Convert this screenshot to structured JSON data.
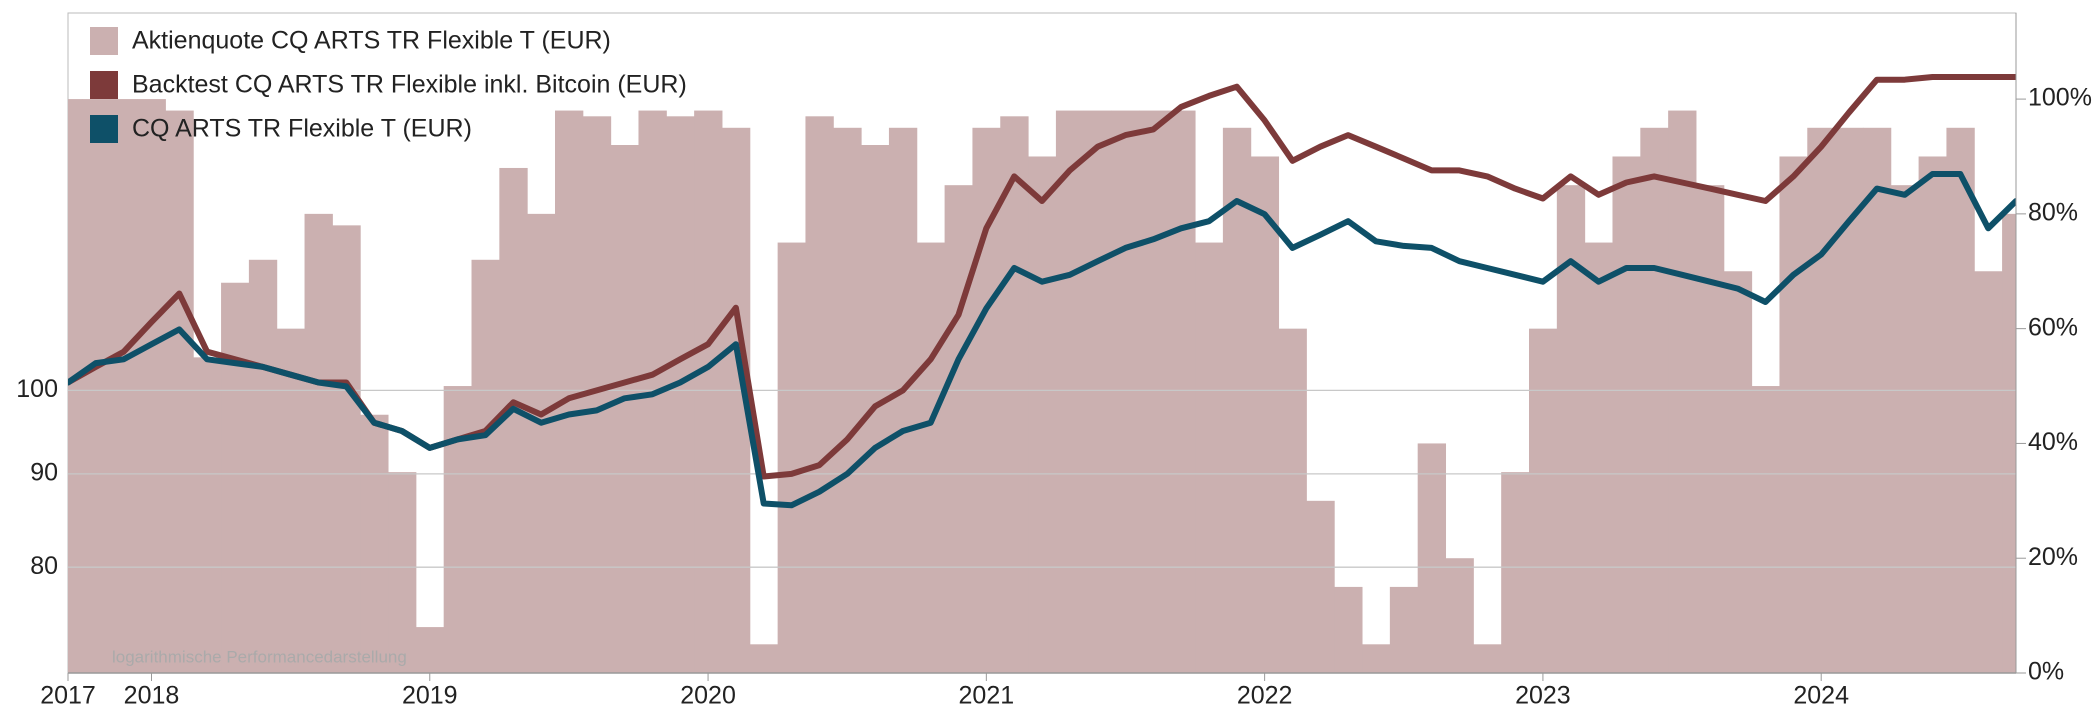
{
  "chart_data": {
    "type": "combo",
    "annotation": "logarithmische Performancedarstellung",
    "x": [
      2017.7,
      2017.8,
      2017.9,
      2018.0,
      2018.1,
      2018.2,
      2018.3,
      2018.4,
      2018.5,
      2018.6,
      2018.7,
      2018.8,
      2018.9,
      2019.0,
      2019.1,
      2019.2,
      2019.3,
      2019.4,
      2019.5,
      2019.6,
      2019.7,
      2019.8,
      2019.9,
      2020.0,
      2020.1,
      2020.2,
      2020.3,
      2020.4,
      2020.5,
      2020.6,
      2020.7,
      2020.8,
      2020.9,
      2021.0,
      2021.1,
      2021.2,
      2021.3,
      2021.4,
      2021.5,
      2021.6,
      2021.7,
      2021.8,
      2021.9,
      2022.0,
      2022.1,
      2022.2,
      2022.3,
      2022.4,
      2022.5,
      2022.6,
      2022.7,
      2022.8,
      2022.9,
      2023.0,
      2023.1,
      2023.2,
      2023.3,
      2023.4,
      2023.5,
      2023.6,
      2023.7,
      2023.8,
      2023.9,
      2024.0,
      2024.1,
      2024.2,
      2024.3,
      2024.4,
      2024.5,
      2024.6,
      2024.7
    ],
    "series": [
      {
        "name": "Aktienquote CQ ARTS TR Flexible T (EUR)",
        "type": "bar",
        "axis": "y2",
        "color": "#cbb0b0",
        "values": [
          100,
          100,
          100,
          100,
          98,
          55,
          68,
          72,
          60,
          80,
          78,
          45,
          35,
          8,
          50,
          72,
          88,
          80,
          98,
          97,
          92,
          98,
          97,
          98,
          95,
          5,
          75,
          97,
          95,
          92,
          95,
          75,
          85,
          95,
          97,
          90,
          98,
          98,
          98,
          98,
          98,
          75,
          95,
          90,
          60,
          30,
          15,
          5,
          15,
          40,
          20,
          5,
          35,
          60,
          85,
          75,
          90,
          95,
          98,
          85,
          70,
          50,
          90,
          95,
          95,
          95,
          85,
          90,
          95,
          70,
          80
        ]
      },
      {
        "name": "Backtest CQ ARTS TR Flexible inkl. Bitcoin (EUR)",
        "type": "line",
        "color": "#7d3a3a",
        "values": [
          101,
          103,
          105,
          109,
          113,
          105,
          104,
          103,
          102,
          101,
          101,
          96,
          95,
          93,
          94,
          95,
          98.5,
          97,
          99,
          100,
          101,
          102,
          104,
          106,
          111,
          89.7,
          90,
          91,
          94,
          98,
          100,
          104,
          110,
          122.7,
          131,
          127,
          132,
          136,
          138,
          139,
          143,
          145,
          146.7,
          140.6,
          133.6,
          136,
          138,
          136,
          134,
          132,
          132,
          131,
          129,
          127.4,
          131,
          128,
          130,
          131,
          130,
          129,
          128,
          127,
          131,
          136,
          142,
          148,
          148,
          148.5,
          148.5,
          148.5,
          148.5
        ]
      },
      {
        "name": "CQ ARTS TR Flexible T (EUR)",
        "type": "line",
        "color": "#0e5068",
        "values": [
          101,
          103.5,
          104,
          106,
          108,
          104,
          103.5,
          103,
          102,
          101,
          100.5,
          96,
          95,
          93,
          94,
          94.5,
          97.7,
          96,
          97,
          97.5,
          99,
          99.5,
          101,
          103,
          106,
          86.7,
          86.5,
          88,
          90,
          93,
          95,
          96,
          104,
          110.9,
          116.7,
          114.7,
          115.7,
          117.7,
          119.7,
          121,
          122.7,
          123.8,
          127,
          124.9,
          119.7,
          121.7,
          123.8,
          120.7,
          120,
          119.7,
          117.7,
          116.7,
          115.7,
          114.7,
          117.7,
          114.7,
          116.7,
          116.7,
          115.7,
          114.7,
          113.7,
          111.8,
          115.7,
          118.7,
          123.8,
          129,
          128,
          131.4,
          131.4,
          122.7,
          127
        ]
      }
    ],
    "xlim": [
      2017.7,
      2024.7
    ],
    "xticks": [
      {
        "value": 2017.7,
        "label": "2017"
      },
      2018,
      2019,
      2020,
      2021,
      2022,
      2023,
      2024
    ],
    "ylim": [
      70,
      161
    ],
    "log_y": true,
    "yticks": [
      80,
      90,
      100
    ],
    "y2lim": [
      0,
      115
    ],
    "y2ticks": [
      {
        "value": 0,
        "label": "0%"
      },
      {
        "value": 20,
        "label": "20%"
      },
      {
        "value": 40,
        "label": "40%"
      },
      {
        "value": 60,
        "label": "60%"
      },
      {
        "value": 80,
        "label": "80%"
      },
      {
        "value": 100,
        "label": "100%"
      }
    ],
    "grid": true,
    "legend": "top-left"
  }
}
